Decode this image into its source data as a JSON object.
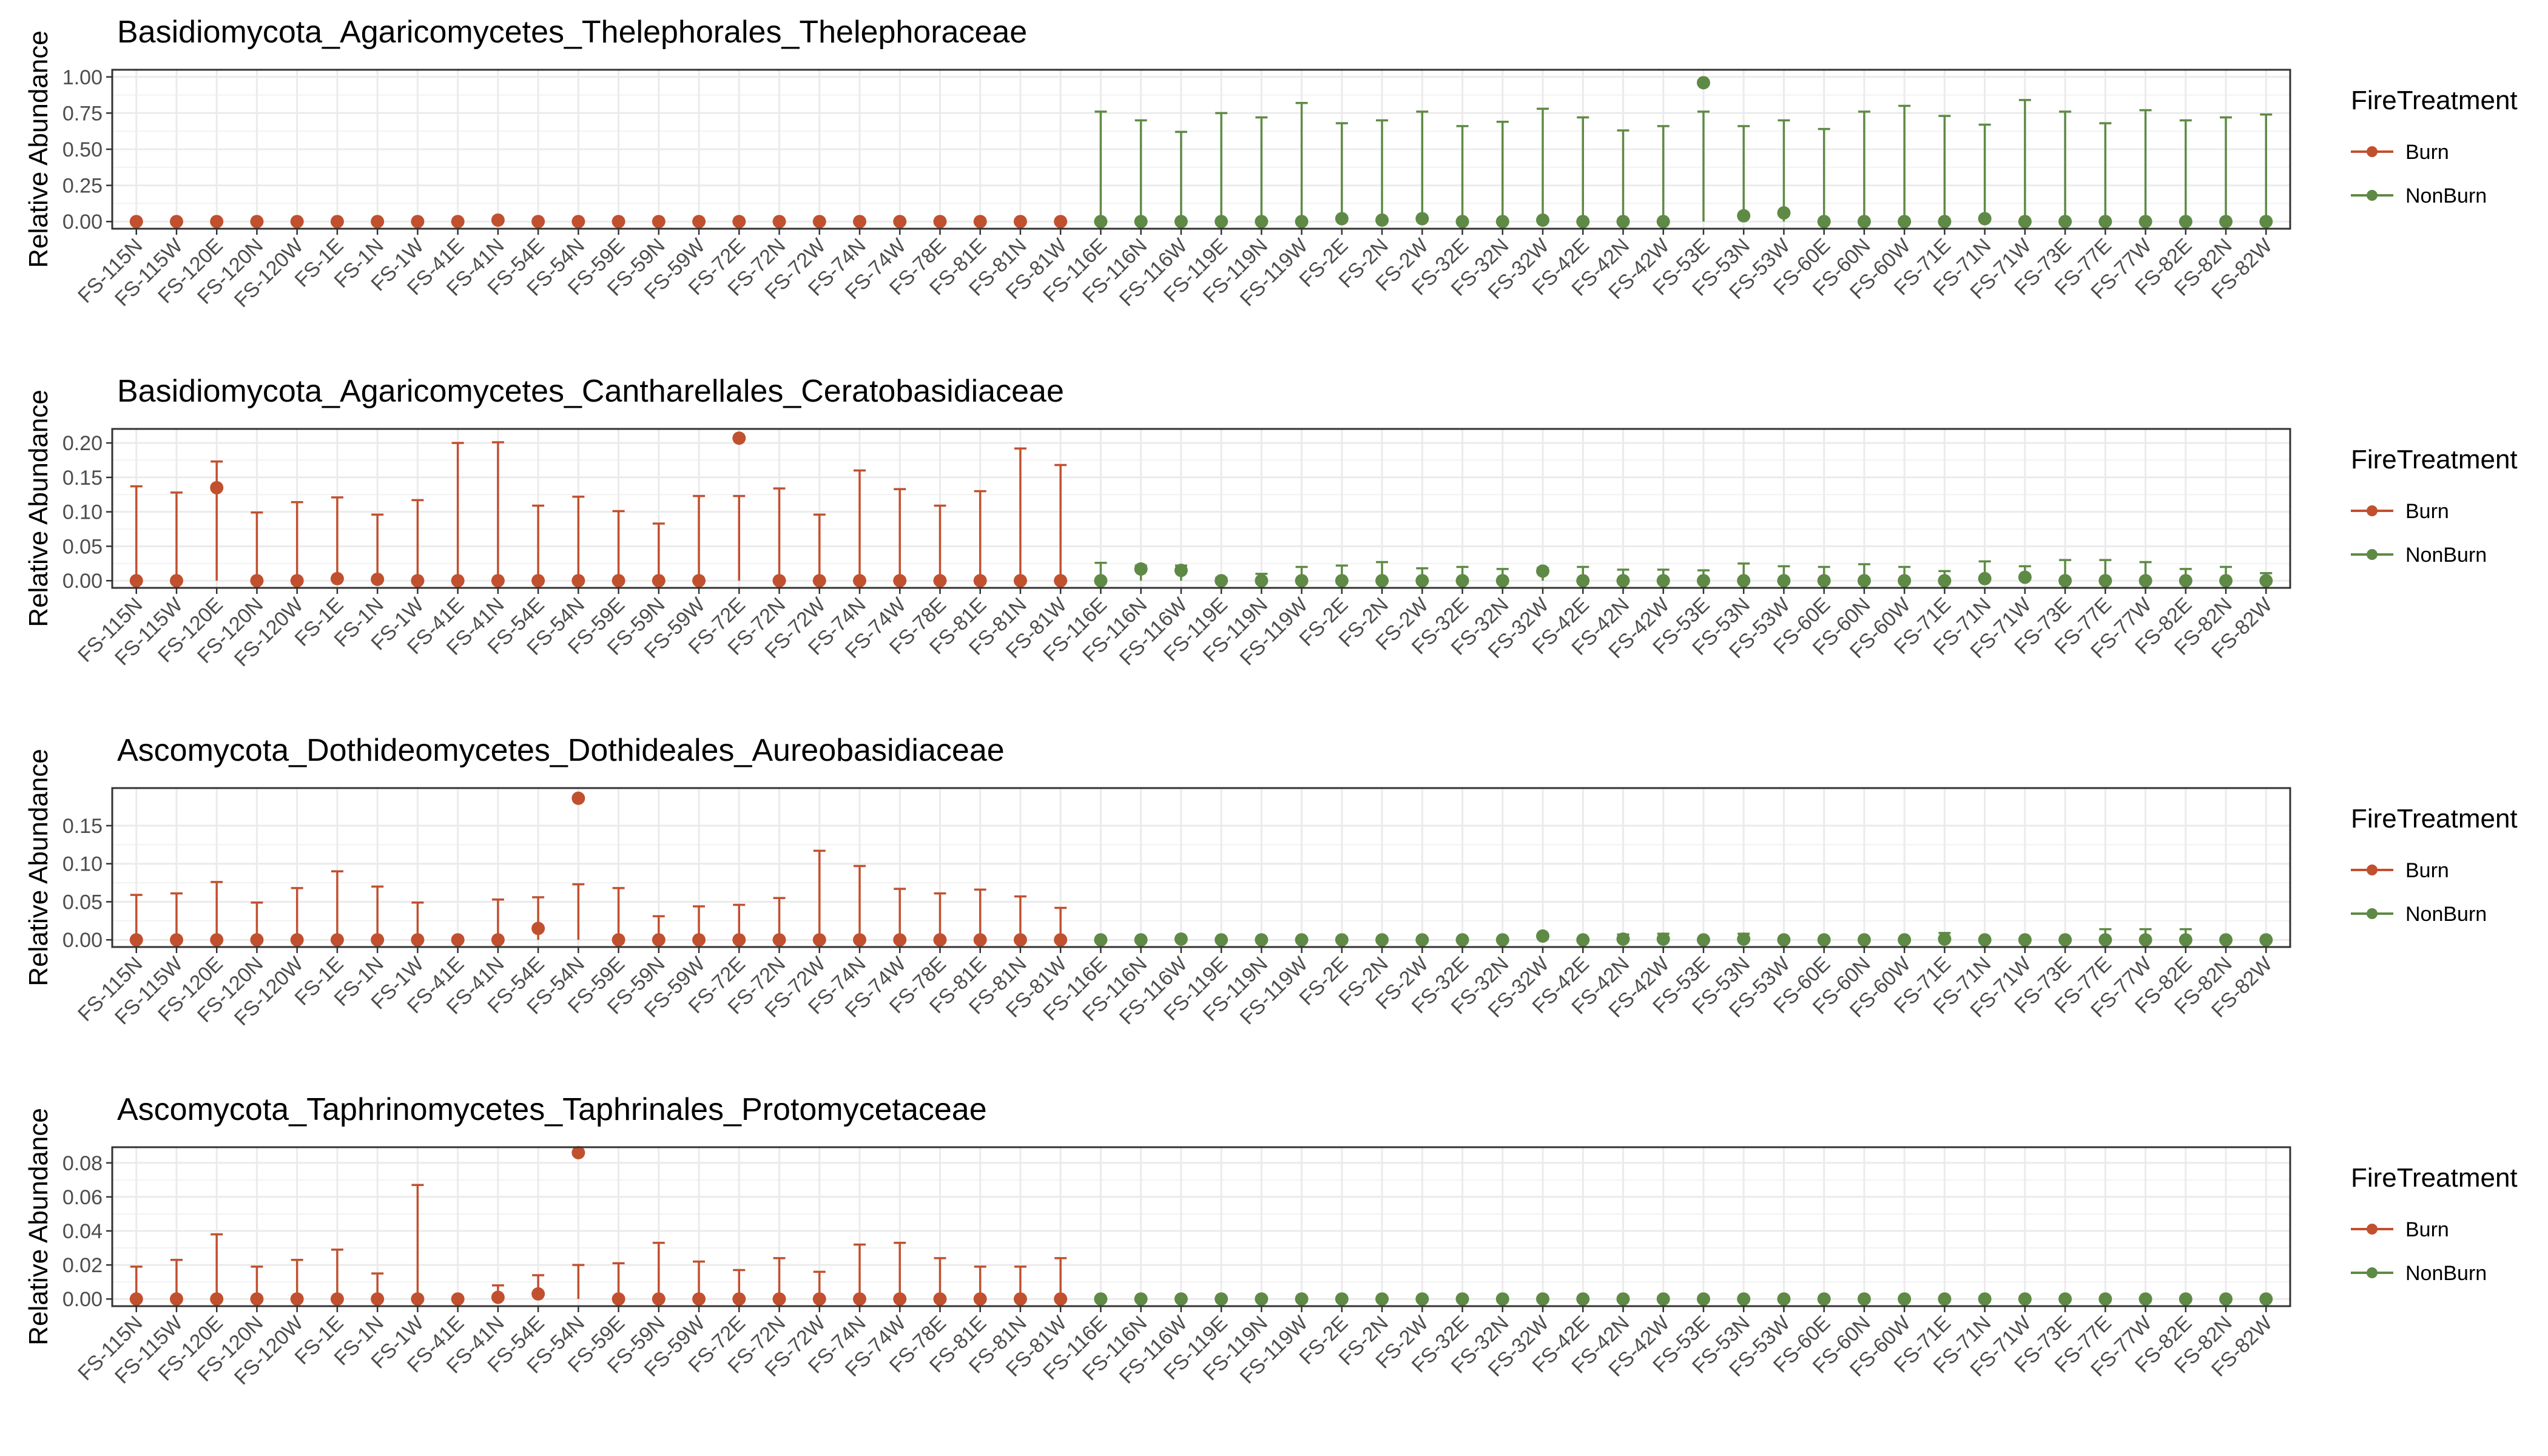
{
  "colors": {
    "Burn": "#C1502F",
    "NonBurn": "#5E8A45"
  },
  "legend": {
    "title": "FireTreatment",
    "items": [
      "Burn",
      "NonBurn"
    ]
  },
  "chart_data": [
    {
      "type": "scatter",
      "title": "Basidiomycota_Agaricomycetes_Thelephorales_Thelephoraceae",
      "ylabel": "Relative Abundance",
      "xlabel": "",
      "ylim": [
        0,
        1.0
      ],
      "yticks": [
        "0.00",
        "0.25",
        "0.50",
        "0.75",
        "1.00"
      ],
      "yticks_values": [
        0,
        0.25,
        0.5,
        0.75,
        1.0
      ],
      "categories": [
        "FS-115N",
        "FS-115W",
        "FS-120E",
        "FS-120N",
        "FS-120W",
        "FS-1E",
        "FS-1N",
        "FS-1W",
        "FS-41E",
        "FS-41N",
        "FS-54E",
        "FS-54N",
        "FS-59E",
        "FS-59N",
        "FS-59W",
        "FS-72E",
        "FS-72N",
        "FS-72W",
        "FS-74N",
        "FS-74W",
        "FS-78E",
        "FS-81E",
        "FS-81N",
        "FS-81W",
        "FS-116E",
        "FS-116N",
        "FS-116W",
        "FS-119E",
        "FS-119N",
        "FS-119W",
        "FS-2E",
        "FS-2N",
        "FS-2W",
        "FS-32E",
        "FS-32N",
        "FS-32W",
        "FS-42E",
        "FS-42N",
        "FS-42W",
        "FS-53E",
        "FS-53N",
        "FS-53W",
        "FS-60E",
        "FS-60N",
        "FS-60W",
        "FS-71E",
        "FS-71N",
        "FS-71W",
        "FS-73E",
        "FS-77E",
        "FS-77W",
        "FS-82E",
        "FS-82N",
        "FS-82W"
      ],
      "groups": [
        "Burn",
        "Burn",
        "Burn",
        "Burn",
        "Burn",
        "Burn",
        "Burn",
        "Burn",
        "Burn",
        "Burn",
        "Burn",
        "Burn",
        "Burn",
        "Burn",
        "Burn",
        "Burn",
        "Burn",
        "Burn",
        "Burn",
        "Burn",
        "Burn",
        "Burn",
        "Burn",
        "Burn",
        "NonBurn",
        "NonBurn",
        "NonBurn",
        "NonBurn",
        "NonBurn",
        "NonBurn",
        "NonBurn",
        "NonBurn",
        "NonBurn",
        "NonBurn",
        "NonBurn",
        "NonBurn",
        "NonBurn",
        "NonBurn",
        "NonBurn",
        "NonBurn",
        "NonBurn",
        "NonBurn",
        "NonBurn",
        "NonBurn",
        "NonBurn",
        "NonBurn",
        "NonBurn",
        "NonBurn",
        "NonBurn",
        "NonBurn",
        "NonBurn",
        "NonBurn",
        "NonBurn",
        "NonBurn"
      ],
      "values": [
        0,
        0,
        0,
        0,
        0,
        0,
        0,
        0,
        0,
        0.01,
        0,
        0,
        0,
        0,
        0,
        0,
        0,
        0,
        0,
        0,
        0,
        0,
        0,
        0,
        0,
        0,
        0,
        0,
        0,
        0,
        0.02,
        0.01,
        0.02,
        0,
        0,
        0.01,
        0,
        0,
        0,
        0.96,
        0.04,
        0.06,
        0,
        0,
        0,
        0,
        0.02,
        0,
        0,
        0,
        0,
        0,
        0,
        0
      ],
      "upper": [
        0,
        0,
        0,
        0,
        0,
        0,
        0,
        0,
        0,
        0,
        0,
        0,
        0,
        0,
        0,
        0,
        0,
        0,
        0,
        0,
        0,
        0,
        0,
        0,
        0.76,
        0.7,
        0.62,
        0.75,
        0.72,
        0.82,
        0.68,
        0.7,
        0.76,
        0.66,
        0.69,
        0.78,
        0.72,
        0.63,
        0.66,
        0.76,
        0.66,
        0.7,
        0.64,
        0.76,
        0.8,
        0.73,
        0.67,
        0.84,
        0.76,
        0.68,
        0.77,
        0.7,
        0.72,
        0.74
      ]
    },
    {
      "type": "scatter",
      "title": "Basidiomycota_Agaricomycetes_Cantharellales_Ceratobasidiaceae",
      "ylabel": "Relative Abundance",
      "xlabel": "",
      "ylim": [
        0,
        0.21
      ],
      "yticks": [
        "0.00",
        "0.05",
        "0.10",
        "0.15",
        "0.20"
      ],
      "yticks_values": [
        0,
        0.05,
        0.1,
        0.15,
        0.2
      ],
      "categories": [
        "FS-115N",
        "FS-115W",
        "FS-120E",
        "FS-120N",
        "FS-120W",
        "FS-1E",
        "FS-1N",
        "FS-1W",
        "FS-41E",
        "FS-41N",
        "FS-54E",
        "FS-54N",
        "FS-59E",
        "FS-59N",
        "FS-59W",
        "FS-72E",
        "FS-72N",
        "FS-72W",
        "FS-74N",
        "FS-74W",
        "FS-78E",
        "FS-81E",
        "FS-81N",
        "FS-81W",
        "FS-116E",
        "FS-116N",
        "FS-116W",
        "FS-119E",
        "FS-119N",
        "FS-119W",
        "FS-2E",
        "FS-2N",
        "FS-2W",
        "FS-32E",
        "FS-32N",
        "FS-32W",
        "FS-42E",
        "FS-42N",
        "FS-42W",
        "FS-53E",
        "FS-53N",
        "FS-53W",
        "FS-60E",
        "FS-60N",
        "FS-60W",
        "FS-71E",
        "FS-71N",
        "FS-71W",
        "FS-73E",
        "FS-77E",
        "FS-77W",
        "FS-82E",
        "FS-82N",
        "FS-82W"
      ],
      "groups": [
        "Burn",
        "Burn",
        "Burn",
        "Burn",
        "Burn",
        "Burn",
        "Burn",
        "Burn",
        "Burn",
        "Burn",
        "Burn",
        "Burn",
        "Burn",
        "Burn",
        "Burn",
        "Burn",
        "Burn",
        "Burn",
        "Burn",
        "Burn",
        "Burn",
        "Burn",
        "Burn",
        "Burn",
        "NonBurn",
        "NonBurn",
        "NonBurn",
        "NonBurn",
        "NonBurn",
        "NonBurn",
        "NonBurn",
        "NonBurn",
        "NonBurn",
        "NonBurn",
        "NonBurn",
        "NonBurn",
        "NonBurn",
        "NonBurn",
        "NonBurn",
        "NonBurn",
        "NonBurn",
        "NonBurn",
        "NonBurn",
        "NonBurn",
        "NonBurn",
        "NonBurn",
        "NonBurn",
        "NonBurn",
        "NonBurn",
        "NonBurn",
        "NonBurn",
        "NonBurn",
        "NonBurn",
        "NonBurn"
      ],
      "values": [
        0,
        0,
        0.135,
        0,
        0,
        0.003,
        0.002,
        0,
        0,
        0,
        0,
        0,
        0,
        0,
        0,
        0.207,
        0,
        0,
        0,
        0,
        0,
        0,
        0,
        0,
        0,
        0.017,
        0.015,
        0,
        0,
        0,
        0,
        0,
        0,
        0,
        0,
        0.014,
        0,
        0,
        0,
        0,
        0,
        0,
        0,
        0,
        0,
        0,
        0.003,
        0.005,
        0,
        0,
        0,
        0,
        0,
        0
      ],
      "upper": [
        0.137,
        0.128,
        0.173,
        0.099,
        0.114,
        0.121,
        0.096,
        0.117,
        0.2,
        0.201,
        0.109,
        0.122,
        0.101,
        0.083,
        0.123,
        0.123,
        0.134,
        0.096,
        0.16,
        0.133,
        0.109,
        0.13,
        0.192,
        0.168,
        0.026,
        0.022,
        0.022,
        0.004,
        0.01,
        0.02,
        0.022,
        0.027,
        0.018,
        0.02,
        0.017,
        0.018,
        0.02,
        0.016,
        0.016,
        0.015,
        0.025,
        0.021,
        0.02,
        0.024,
        0.02,
        0.014,
        0.028,
        0.021,
        0.03,
        0.03,
        0.027,
        0.017,
        0.02,
        0.011
      ]
    },
    {
      "type": "scatter",
      "title": "Ascomycota_Dothideomycetes_Dothideales_Aureobasidiaceae",
      "ylabel": "Relative Abundance",
      "xlabel": "",
      "ylim": [
        0,
        0.19
      ],
      "yticks": [
        "0.00",
        "0.05",
        "0.10",
        "0.15"
      ],
      "yticks_values": [
        0,
        0.05,
        0.1,
        0.15
      ],
      "categories": [
        "FS-115N",
        "FS-115W",
        "FS-120E",
        "FS-120N",
        "FS-120W",
        "FS-1E",
        "FS-1N",
        "FS-1W",
        "FS-41E",
        "FS-41N",
        "FS-54E",
        "FS-54N",
        "FS-59E",
        "FS-59N",
        "FS-59W",
        "FS-72E",
        "FS-72N",
        "FS-72W",
        "FS-74N",
        "FS-74W",
        "FS-78E",
        "FS-81E",
        "FS-81N",
        "FS-81W",
        "FS-116E",
        "FS-116N",
        "FS-116W",
        "FS-119E",
        "FS-119N",
        "FS-119W",
        "FS-2E",
        "FS-2N",
        "FS-2W",
        "FS-32E",
        "FS-32N",
        "FS-32W",
        "FS-42E",
        "FS-42N",
        "FS-42W",
        "FS-53E",
        "FS-53N",
        "FS-53W",
        "FS-60E",
        "FS-60N",
        "FS-60W",
        "FS-71E",
        "FS-71N",
        "FS-71W",
        "FS-73E",
        "FS-77E",
        "FS-77W",
        "FS-82E",
        "FS-82N",
        "FS-82W"
      ],
      "groups": [
        "Burn",
        "Burn",
        "Burn",
        "Burn",
        "Burn",
        "Burn",
        "Burn",
        "Burn",
        "Burn",
        "Burn",
        "Burn",
        "Burn",
        "Burn",
        "Burn",
        "Burn",
        "Burn",
        "Burn",
        "Burn",
        "Burn",
        "Burn",
        "Burn",
        "Burn",
        "Burn",
        "Burn",
        "NonBurn",
        "NonBurn",
        "NonBurn",
        "NonBurn",
        "NonBurn",
        "NonBurn",
        "NonBurn",
        "NonBurn",
        "NonBurn",
        "NonBurn",
        "NonBurn",
        "NonBurn",
        "NonBurn",
        "NonBurn",
        "NonBurn",
        "NonBurn",
        "NonBurn",
        "NonBurn",
        "NonBurn",
        "NonBurn",
        "NonBurn",
        "NonBurn",
        "NonBurn",
        "NonBurn",
        "NonBurn",
        "NonBurn",
        "NonBurn",
        "NonBurn",
        "NonBurn",
        "NonBurn"
      ],
      "values": [
        0,
        0,
        0,
        0,
        0,
        0,
        0,
        0,
        0,
        0,
        0.015,
        0.186,
        0,
        0,
        0,
        0,
        0,
        0,
        0,
        0,
        0,
        0,
        0,
        0,
        0,
        0,
        0.001,
        0,
        0,
        0,
        0,
        0,
        0,
        0,
        0,
        0.005,
        0,
        0.001,
        0.001,
        0,
        0.001,
        0,
        0,
        0,
        0,
        0.001,
        0,
        0,
        0,
        0,
        0,
        0,
        0,
        0
      ],
      "upper": [
        0.059,
        0.061,
        0.076,
        0.049,
        0.068,
        0.09,
        0.07,
        0.049,
        0.003,
        0.053,
        0.056,
        0.073,
        0.068,
        0.031,
        0.044,
        0.046,
        0.055,
        0.117,
        0.097,
        0.067,
        0.061,
        0.066,
        0.057,
        0.042,
        0.002,
        0.002,
        0.003,
        0.002,
        0.002,
        0.002,
        0.003,
        0.002,
        0.002,
        0.002,
        0.002,
        0.007,
        0.002,
        0.007,
        0.008,
        0.002,
        0.008,
        0.002,
        0.002,
        0.002,
        0.002,
        0.009,
        0.002,
        0.002,
        0.002,
        0.014,
        0.014,
        0.014,
        0.002,
        0.002
      ]
    },
    {
      "type": "scatter",
      "title": "Ascomycota_Taphrinomycetes_Taphrinales_Protomycetaceae",
      "ylabel": "Relative Abundance",
      "xlabel": "",
      "ylim": [
        0,
        0.085
      ],
      "yticks": [
        "0.00",
        "0.02",
        "0.04",
        "0.06",
        "0.08"
      ],
      "yticks_values": [
        0,
        0.02,
        0.04,
        0.06,
        0.08
      ],
      "categories": [
        "FS-115N",
        "FS-115W",
        "FS-120E",
        "FS-120N",
        "FS-120W",
        "FS-1E",
        "FS-1N",
        "FS-1W",
        "FS-41E",
        "FS-41N",
        "FS-54E",
        "FS-54N",
        "FS-59E",
        "FS-59N",
        "FS-59W",
        "FS-72E",
        "FS-72N",
        "FS-72W",
        "FS-74N",
        "FS-74W",
        "FS-78E",
        "FS-81E",
        "FS-81N",
        "FS-81W",
        "FS-116E",
        "FS-116N",
        "FS-116W",
        "FS-119E",
        "FS-119N",
        "FS-119W",
        "FS-2E",
        "FS-2N",
        "FS-2W",
        "FS-32E",
        "FS-32N",
        "FS-32W",
        "FS-42E",
        "FS-42N",
        "FS-42W",
        "FS-53E",
        "FS-53N",
        "FS-53W",
        "FS-60E",
        "FS-60N",
        "FS-60W",
        "FS-71E",
        "FS-71N",
        "FS-71W",
        "FS-73E",
        "FS-77E",
        "FS-77W",
        "FS-82E",
        "FS-82N",
        "FS-82W"
      ],
      "groups": [
        "Burn",
        "Burn",
        "Burn",
        "Burn",
        "Burn",
        "Burn",
        "Burn",
        "Burn",
        "Burn",
        "Burn",
        "Burn",
        "Burn",
        "Burn",
        "Burn",
        "Burn",
        "Burn",
        "Burn",
        "Burn",
        "Burn",
        "Burn",
        "Burn",
        "Burn",
        "Burn",
        "Burn",
        "NonBurn",
        "NonBurn",
        "NonBurn",
        "NonBurn",
        "NonBurn",
        "NonBurn",
        "NonBurn",
        "NonBurn",
        "NonBurn",
        "NonBurn",
        "NonBurn",
        "NonBurn",
        "NonBurn",
        "NonBurn",
        "NonBurn",
        "NonBurn",
        "NonBurn",
        "NonBurn",
        "NonBurn",
        "NonBurn",
        "NonBurn",
        "NonBurn",
        "NonBurn",
        "NonBurn",
        "NonBurn",
        "NonBurn",
        "NonBurn",
        "NonBurn",
        "NonBurn",
        "NonBurn"
      ],
      "values": [
        0,
        0,
        0,
        0,
        0,
        0,
        0,
        0,
        0,
        0.001,
        0.003,
        0.086,
        0,
        0,
        0,
        0,
        0,
        0,
        0,
        0,
        0,
        0,
        0,
        0,
        0,
        0,
        0,
        0,
        0,
        0,
        0,
        0,
        0,
        0,
        0,
        0,
        0,
        0,
        0,
        0,
        0,
        0,
        0,
        0,
        0,
        0,
        0,
        0,
        0,
        0,
        0,
        0,
        0,
        0
      ],
      "upper": [
        0.019,
        0.023,
        0.038,
        0.019,
        0.023,
        0.029,
        0.015,
        0.067,
        0.001,
        0.008,
        0.014,
        0.02,
        0.021,
        0.033,
        0.022,
        0.017,
        0.024,
        0.016,
        0.032,
        0.033,
        0.024,
        0.019,
        0.019,
        0.024,
        0.001,
        0.001,
        0.001,
        0.001,
        0.001,
        0.001,
        0.001,
        0.001,
        0.001,
        0.001,
        0.001,
        0.001,
        0.001,
        0.001,
        0.001,
        0.001,
        0.001,
        0.001,
        0.001,
        0.001,
        0.001,
        0.001,
        0.001,
        0.001,
        0.001,
        0.001,
        0.001,
        0.001,
        0.001,
        0.001
      ]
    }
  ]
}
